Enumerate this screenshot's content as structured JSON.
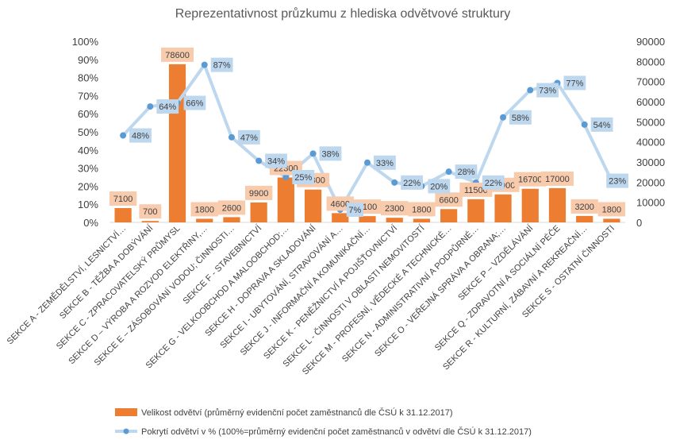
{
  "chart_data": {
    "type": "bar+line",
    "title": "Reprezentativnost průzkumu z hlediska odvětvové struktury",
    "categories": [
      "SEKCE A - ZEMĚDĚLSTVÍ, LESNICTVÍ…",
      "SEKCE B - TĚŽBA A DOBÝVÁNÍ",
      "SEKCE C - ZPRACOVATELSKÝ PRŮMYSL",
      "SEKCE D – VÝROBA A ROZVOD ELEKTŘINY,…",
      "SEKCE E – ZÁSOBOVÁNÍ VODOU; ČINNOSTI…",
      "SEKCE F - STAVEBNICTVÍ",
      "SEKCE G - VELKOOBCHOD A MALOOBCHOD;…",
      "SEKCE H - DOPRAVA A SKLADOVÁNÍ",
      "SEKCE I - UBYTOVÁNÍ, STRAVOVÁNÍ A…",
      "SEKCE J - INFORMAČNÍ A KOMUNIKAČNÍ…",
      "SEKCE K - PENĚŽNICTVÍ A POJIŠŤOVNICTVÍ",
      "SEKCE L - ČINNOSTI V OBLASTI NEMOVITOSTÍ",
      "SEKCE M - PROFESNÍ, VĚDECKÉ A TECHNICKÉ…",
      "SEKCE N - ADMINISTRATIVNÍ A PODPŮRNÉ…",
      "SEKCE O - VEŘEJNÁ SPRÁVA A OBRANA;…",
      "SEKCE P – VZDĚLÁVÁNÍ",
      "SEKCE Q - ZDRAVOTNÍ A SOCIÁLNÍ PÉČE",
      "SEKCE R - KULTURNÍ, ZÁBAVNÍ A REKREAČNÍ…",
      "SEKCE S - OSTATNÍ ČINNOSTI"
    ],
    "series": [
      {
        "name": "Velikost odvětví (průměrný evidenční počet zaměstnanců dle ČSÚ k 31.12.2017)",
        "type": "bar",
        "axis": "right",
        "values": [
          7100,
          700,
          78600,
          1800,
          2600,
          9900,
          22300,
          16300,
          4600,
          3100,
          2300,
          1800,
          6600,
          11500,
          13900,
          16700,
          17000,
          3200,
          1800
        ],
        "labels": [
          "7100",
          "700",
          "78600",
          "1800",
          "2600",
          "9900",
          "22300",
          "16300",
          "4600",
          "3100",
          "2300",
          "1800",
          "6600",
          "11500",
          "13900",
          "16700",
          "17000",
          "3200",
          "1800"
        ]
      },
      {
        "name": "Pokrytí odvětví v % (100%=průměrný evidenční počet zaměstnanců v odvětví dle ČSÚ k 31.12.2017)",
        "type": "line",
        "axis": "left",
        "values": [
          48,
          64,
          66,
          87,
          47,
          34,
          25,
          38,
          7,
          33,
          22,
          20,
          28,
          22,
          58,
          73,
          77,
          54,
          23
        ],
        "labels": [
          "48%",
          "64%",
          "66%",
          "87%",
          "47%",
          "34%",
          "25%",
          "38%",
          "7%",
          "33%",
          "22%",
          "20%",
          "28%",
          "22%",
          "58%",
          "73%",
          "77%",
          "54%",
          "23%"
        ]
      }
    ],
    "y_left": {
      "min": 0,
      "max": 100,
      "ticks": [
        "0%",
        "10%",
        "20%",
        "30%",
        "40%",
        "50%",
        "60%",
        "70%",
        "80%",
        "90%",
        "100%"
      ]
    },
    "y_right": {
      "min": 0,
      "max": 90000,
      "ticks": [
        "0",
        "10000",
        "20000",
        "30000",
        "40000",
        "50000",
        "60000",
        "70000",
        "80000",
        "90000"
      ]
    },
    "grid": false,
    "legend_position": "bottom",
    "colors": {
      "bar": "#ED7D31",
      "bar_label_bg": "#F8CBAD",
      "line": "#BDD7EE",
      "marker": "#5B9BD5",
      "line_label_bg": "#BDD7EE"
    }
  }
}
